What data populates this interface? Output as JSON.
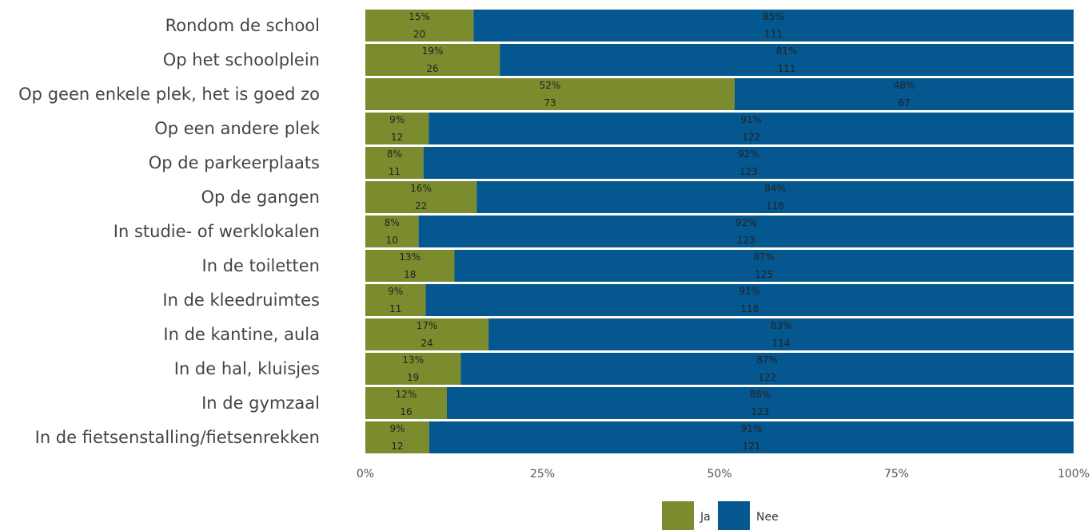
{
  "chart_data": {
    "type": "bar",
    "orientation": "horizontal",
    "stacked": "percent",
    "categories": [
      "Rondom de school",
      "Op het schoolplein",
      "Op geen enkele plek, het is goed zo",
      "Op een andere plek",
      "Op de parkeerplaats",
      "Op de gangen",
      "In studie- of werklokalen",
      "In de toiletten",
      "In de kleedruimtes",
      "In de kantine, aula",
      "In de hal, kluisjes",
      "In de gymzaal",
      "In de fietsenstalling/fietsenrekken"
    ],
    "series": [
      {
        "name": "Ja",
        "color": "#7a8c2e",
        "percent_labels": [
          "15%",
          "19%",
          "52%",
          "9%",
          "8%",
          "16%",
          "8%",
          "13%",
          "9%",
          "17%",
          "13%",
          "12%",
          "9%"
        ],
        "counts": [
          20,
          26,
          73,
          12,
          11,
          22,
          10,
          18,
          11,
          24,
          19,
          16,
          12
        ]
      },
      {
        "name": "Nee",
        "color": "#04578f",
        "percent_labels": [
          "85%",
          "81%",
          "48%",
          "91%",
          "92%",
          "84%",
          "92%",
          "87%",
          "91%",
          "83%",
          "87%",
          "88%",
          "91%"
        ],
        "counts": [
          111,
          111,
          67,
          122,
          123,
          118,
          123,
          125,
          118,
          114,
          122,
          123,
          121
        ]
      }
    ],
    "xticks": [
      "0%",
      "25%",
      "50%",
      "75%",
      "100%"
    ],
    "xlim": [
      0,
      100
    ],
    "grid": false,
    "legend": "bottom-center"
  }
}
